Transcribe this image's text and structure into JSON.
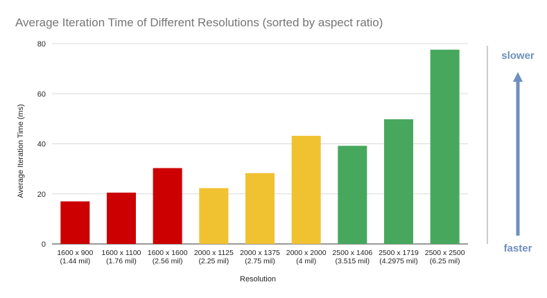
{
  "chart_data": {
    "type": "bar",
    "title": "Average Iteration Time of Different Resolutions (sorted by aspect ratio)",
    "xlabel": "Resolution",
    "ylabel": "Average Iteration Time (ms)",
    "ylim": [
      0,
      80
    ],
    "yticks": [
      0,
      20,
      40,
      60,
      80
    ],
    "grid": true,
    "categories": [
      [
        "1600 x 900",
        "(1.44 mil)"
      ],
      [
        "1600 x 1100",
        "(1.76 mil)"
      ],
      [
        "1600 x 1600",
        "(2.56 mil)"
      ],
      [
        "2000 x 1125",
        "(2.25 mil)"
      ],
      [
        "2000 x 1375",
        "(2.75 mil)"
      ],
      [
        "2000 x 2000",
        "(4 mil)"
      ],
      [
        "2500 x 1406",
        "(3.515 mil)"
      ],
      [
        "2500 x 1719",
        "(4.2975 mil)"
      ],
      [
        "2500 x 2500",
        "(6.25 mil)"
      ]
    ],
    "values": [
      17,
      20.5,
      30.3,
      22.3,
      28.3,
      43.2,
      39.2,
      49.8,
      77.6
    ],
    "bar_colors": [
      "#cc0000",
      "#cc0000",
      "#cc0000",
      "#f0c232",
      "#f0c232",
      "#f0c232",
      "#47a85d",
      "#47a85d",
      "#47a85d"
    ],
    "annotations": {
      "top": "slower",
      "bottom": "faster"
    },
    "colors": {
      "arrow": "#6f8fbf",
      "gridline": "#d9d9d9",
      "side_line": "#cccccc"
    }
  }
}
